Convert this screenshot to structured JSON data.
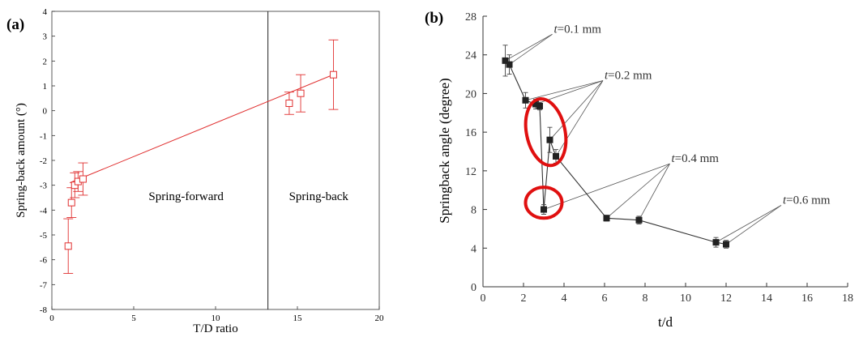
{
  "chart_data": [
    {
      "panel_label": "(a)",
      "type": "scatter",
      "xlabel": "T/D ratio",
      "ylabel": "Spring-back amount (°)",
      "xlim": [
        0,
        20
      ],
      "ylim": [
        -8,
        4
      ],
      "xticks": [
        0,
        5,
        10,
        15,
        20
      ],
      "yticks": [
        -8,
        -7,
        -6,
        -5,
        -4,
        -3,
        -2,
        -1,
        0,
        1,
        2,
        3,
        4
      ],
      "color": "#e03030",
      "marker": "open-square",
      "fit_line": [
        [
          1.1,
          -2.9
        ],
        [
          17.0,
          1.4
        ]
      ],
      "divider_x": 13.2,
      "regions": [
        {
          "label": "Spring-forward",
          "x": 8.2,
          "y": -3.6
        },
        {
          "label": "Spring-back",
          "x": 16.3,
          "y": -3.6
        }
      ],
      "points": [
        {
          "x": 1.0,
          "y": -5.45,
          "err": 1.1
        },
        {
          "x": 1.2,
          "y": -3.7,
          "err": 0.6
        },
        {
          "x": 1.4,
          "y": -3.0,
          "err": 0.5
        },
        {
          "x": 1.6,
          "y": -2.85,
          "err": 0.4
        },
        {
          "x": 1.9,
          "y": -2.75,
          "err": 0.65
        },
        {
          "x": 14.5,
          "y": 0.3,
          "err": 0.45
        },
        {
          "x": 15.2,
          "y": 0.7,
          "err": 0.75
        },
        {
          "x": 17.2,
          "y": 1.45,
          "err": 1.4
        }
      ]
    },
    {
      "panel_label": "(b)",
      "type": "line",
      "xlabel": "t/d",
      "ylabel": "Springback angle (degree)",
      "xlim": [
        0,
        18
      ],
      "ylim": [
        0,
        28
      ],
      "xticks": [
        0,
        2,
        4,
        6,
        8,
        10,
        12,
        14,
        16,
        18
      ],
      "yticks": [
        0,
        4,
        8,
        12,
        16,
        20,
        24,
        28
      ],
      "color": "#222222",
      "marker": "filled-square",
      "series_points": [
        {
          "x": 1.1,
          "y": 23.4,
          "err": 1.6
        },
        {
          "x": 1.3,
          "y": 23.0,
          "err": 1.0
        },
        {
          "x": 2.1,
          "y": 19.3,
          "err": 0.8
        },
        {
          "x": 2.6,
          "y": 18.9,
          "err": 0.5
        },
        {
          "x": 2.8,
          "y": 18.7,
          "err": 0.4
        },
        {
          "x": 3.0,
          "y": 8.0,
          "err": 0.5
        },
        {
          "x": 3.3,
          "y": 15.2,
          "err": 1.3
        },
        {
          "x": 3.6,
          "y": 13.5,
          "err": 0.7
        },
        {
          "x": 6.1,
          "y": 7.1,
          "err": 0.3
        },
        {
          "x": 7.7,
          "y": 6.9,
          "err": 0.4
        },
        {
          "x": 11.5,
          "y": 4.6,
          "err": 0.5
        },
        {
          "x": 12.0,
          "y": 4.4,
          "err": 0.4
        }
      ],
      "annotations": [
        {
          "prefix": "t",
          "text": "=0.1 mm",
          "tx": 3.5,
          "ty": 26.3,
          "targets": [
            [
              1.1,
              23.4
            ],
            [
              1.3,
              23.0
            ]
          ]
        },
        {
          "prefix": "t",
          "text": "=0.2 mm",
          "tx": 6.0,
          "ty": 21.5,
          "targets": [
            [
              2.1,
              19.3
            ],
            [
              2.6,
              18.9
            ],
            [
              3.3,
              15.2
            ],
            [
              3.6,
              13.5
            ]
          ]
        },
        {
          "prefix": "t",
          "text": "=0.4 mm",
          "tx": 9.3,
          "ty": 12.9,
          "targets": [
            [
              3.0,
              8.0
            ],
            [
              6.1,
              7.1
            ],
            [
              7.7,
              6.9
            ]
          ]
        },
        {
          "prefix": "t",
          "text": "=0.6 mm",
          "tx": 14.8,
          "ty": 8.6,
          "targets": [
            [
              11.5,
              4.6
            ],
            [
              12.0,
              4.4
            ]
          ]
        }
      ],
      "highlights": [
        {
          "cx": 3.1,
          "cy": 16.0,
          "rx": 0.95,
          "ry": 3.5,
          "rotate": -12,
          "color": "#e01010"
        },
        {
          "cx": 3.0,
          "cy": 8.7,
          "rx": 0.9,
          "ry": 1.6,
          "rotate": 0,
          "color": "#e01010"
        }
      ]
    }
  ]
}
